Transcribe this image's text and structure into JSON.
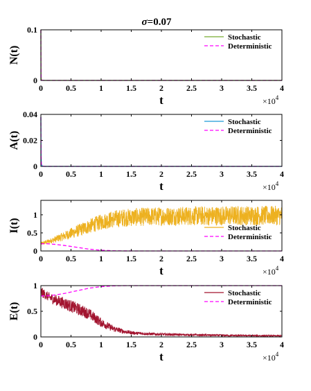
{
  "figure": {
    "title_symbol": "σ",
    "title_value": "=0.07"
  },
  "chart_data": [
    {
      "type": "line",
      "ylabel": "N(t)",
      "xlabel": "t",
      "x_multiplier": "×10",
      "x_exponent": "4",
      "xlim": [
        0,
        40000
      ],
      "ylim": [
        0,
        0.1
      ],
      "xticks": [
        0,
        5000,
        10000,
        15000,
        20000,
        25000,
        30000,
        35000,
        40000
      ],
      "xtick_labels": [
        "0",
        "0.5",
        "1",
        "1.5",
        "2",
        "2.5",
        "3",
        "3.5",
        "4"
      ],
      "yticks": [
        0,
        0.1
      ],
      "ytick_labels": [
        "0",
        "0.1"
      ],
      "legend_position": "top-right",
      "series": [
        {
          "name": "Stochastic",
          "color": "#77ac30",
          "style": "solid",
          "x": [
            0,
            15,
            30,
            60,
            150,
            500,
            2000,
            40000
          ],
          "y": [
            0.1,
            0.04,
            0.01,
            0.002,
            0.0003,
            0,
            0,
            0
          ]
        },
        {
          "name": "Deterministic",
          "color": "#ff00ff",
          "style": "dashed",
          "x": [
            0,
            15,
            30,
            60,
            150,
            500,
            2000,
            40000
          ],
          "y": [
            0.1,
            0.04,
            0.01,
            0.002,
            0.0003,
            0,
            0,
            0
          ]
        }
      ]
    },
    {
      "type": "line",
      "ylabel": "A(t)",
      "xlabel": "t",
      "x_multiplier": "×10",
      "x_exponent": "4",
      "xlim": [
        0,
        40000
      ],
      "ylim": [
        0,
        0.04
      ],
      "xticks": [
        0,
        5000,
        10000,
        15000,
        20000,
        25000,
        30000,
        35000,
        40000
      ],
      "xtick_labels": [
        "0",
        "0.5",
        "1",
        "1.5",
        "2",
        "2.5",
        "3",
        "3.5",
        "4"
      ],
      "yticks": [
        0,
        0.02,
        0.04
      ],
      "ytick_labels": [
        "0",
        "0.02",
        "0.04"
      ],
      "legend_position": "top-right",
      "series": [
        {
          "name": "Stochastic",
          "color": "#1b9bd8",
          "style": "solid",
          "x": [
            0,
            20,
            40,
            80,
            200,
            600,
            2000,
            40000
          ],
          "y": [
            0.038,
            0.02,
            0.008,
            0.002,
            0.0003,
            0,
            0,
            0
          ]
        },
        {
          "name": "Deterministic",
          "color": "#ff00ff",
          "style": "dashed",
          "x": [
            0,
            20,
            40,
            80,
            200,
            600,
            2000,
            40000
          ],
          "y": [
            0.038,
            0.02,
            0.008,
            0.002,
            0.0003,
            0,
            0,
            0
          ]
        }
      ]
    },
    {
      "type": "line",
      "ylabel": "I(t)",
      "xlabel": "t",
      "x_multiplier": "×10",
      "x_exponent": "4",
      "xlim": [
        0,
        40000
      ],
      "ylim": [
        0,
        1.4
      ],
      "xticks": [
        0,
        5000,
        10000,
        15000,
        20000,
        25000,
        30000,
        35000,
        40000
      ],
      "xtick_labels": [
        "0",
        "0.5",
        "1",
        "1.5",
        "2",
        "2.5",
        "3",
        "3.5",
        "4"
      ],
      "yticks": [
        0,
        0.5,
        1
      ],
      "ytick_labels": [
        "0",
        "0.5",
        "1"
      ],
      "legend_position": "right",
      "series": [
        {
          "name": "Stochastic",
          "color": "#edb120",
          "style": "solid",
          "band": true,
          "x": [
            0,
            1000,
            2000,
            4000,
            6000,
            8000,
            10000,
            12000,
            14000,
            16000,
            18000,
            20000,
            24000,
            28000,
            32000,
            36000,
            40000
          ],
          "y": [
            0.2,
            0.25,
            0.3,
            0.42,
            0.55,
            0.68,
            0.8,
            0.88,
            0.92,
            0.94,
            0.95,
            0.96,
            0.97,
            0.97,
            0.98,
            0.98,
            0.98
          ],
          "spread": [
            0.05,
            0.06,
            0.08,
            0.13,
            0.17,
            0.2,
            0.22,
            0.24,
            0.25,
            0.25,
            0.26,
            0.26,
            0.26,
            0.27,
            0.27,
            0.27,
            0.27
          ]
        },
        {
          "name": "Deterministic",
          "color": "#ff00ff",
          "style": "dashed",
          "x": [
            0,
            1000,
            2500,
            4000,
            6000,
            8000,
            10000,
            12000,
            14000,
            20000,
            30000,
            40000
          ],
          "y": [
            0.2,
            0.2,
            0.18,
            0.15,
            0.1,
            0.05,
            0.02,
            0.006,
            0.001,
            0,
            0,
            0
          ]
        }
      ]
    },
    {
      "type": "line",
      "ylabel": "E(t)",
      "xlabel": "t",
      "x_multiplier": "×10",
      "x_exponent": "4",
      "xlim": [
        0,
        40000
      ],
      "ylim": [
        0,
        1
      ],
      "xticks": [
        0,
        5000,
        10000,
        15000,
        20000,
        25000,
        30000,
        35000,
        40000
      ],
      "xtick_labels": [
        "0",
        "0.5",
        "1",
        "1.5",
        "2",
        "2.5",
        "3",
        "3.5",
        "4"
      ],
      "yticks": [
        0,
        0.5,
        1
      ],
      "ytick_labels": [
        "0",
        "0.5",
        "1"
      ],
      "legend_position": "top-right",
      "series": [
        {
          "name": "Stochastic",
          "color": "#a2142f",
          "style": "solid",
          "band": true,
          "x": [
            0,
            1000,
            2000,
            4000,
            6000,
            8000,
            10000,
            12000,
            14000,
            16000,
            20000,
            25000,
            30000,
            35000,
            40000
          ],
          "y": [
            0.88,
            0.8,
            0.74,
            0.65,
            0.55,
            0.45,
            0.28,
            0.16,
            0.1,
            0.07,
            0.05,
            0.04,
            0.03,
            0.025,
            0.02
          ],
          "spread": [
            0.1,
            0.09,
            0.1,
            0.12,
            0.12,
            0.11,
            0.09,
            0.06,
            0.04,
            0.03,
            0.025,
            0.02,
            0.02,
            0.015,
            0.015
          ]
        },
        {
          "name": "Deterministic",
          "color": "#ff00ff",
          "style": "dashed",
          "x": [
            0,
            1000,
            2500,
            4000,
            6000,
            8000,
            10000,
            12000,
            14000,
            20000,
            30000,
            40000
          ],
          "y": [
            0.8,
            0.8,
            0.82,
            0.85,
            0.9,
            0.95,
            0.98,
            0.995,
            1,
            1,
            1,
            1
          ]
        }
      ]
    }
  ]
}
